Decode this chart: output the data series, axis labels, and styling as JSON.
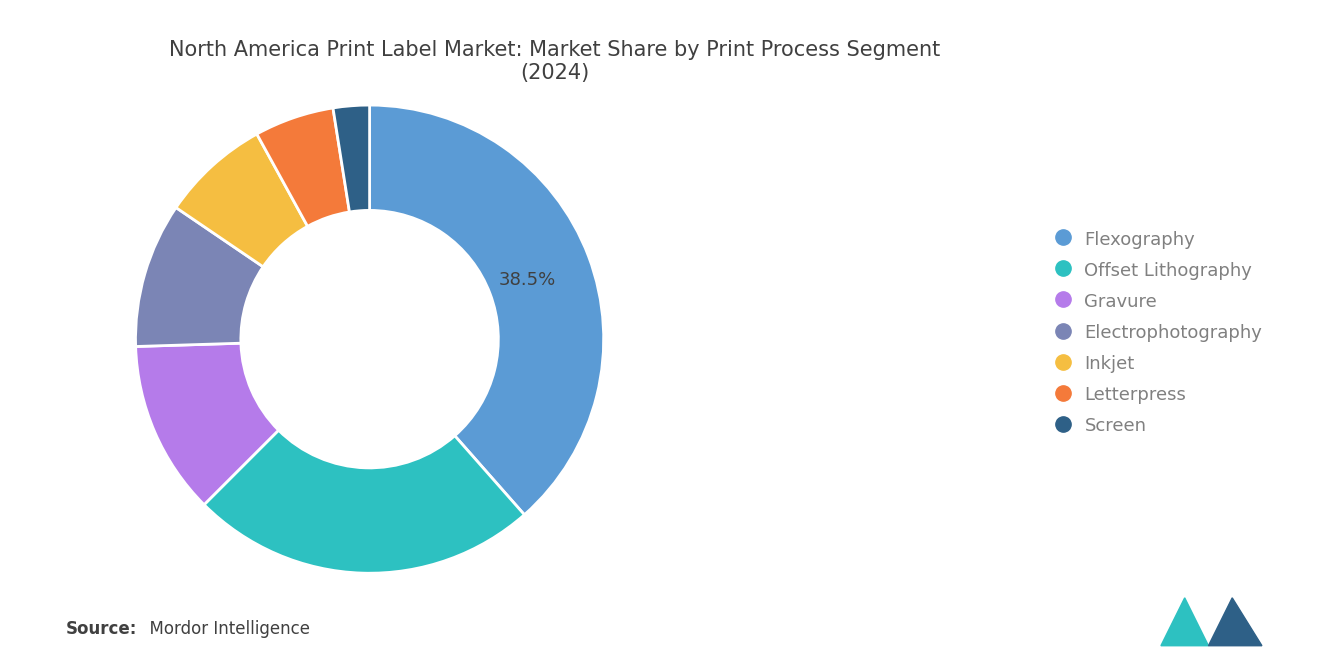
{
  "title": "North America Print Label Market: Market Share by Print Process Segment\n(2024)",
  "segments": [
    {
      "label": "Flexography",
      "value": 38.5,
      "color": "#5B9BD5"
    },
    {
      "label": "Offset Lithography",
      "value": 24.0,
      "color": "#2DC1C1"
    },
    {
      "label": "Gravure",
      "value": 12.0,
      "color": "#B57BEA"
    },
    {
      "label": "Electrophotography",
      "value": 10.0,
      "color": "#7B85B5"
    },
    {
      "label": "Inkjet",
      "value": 7.5,
      "color": "#F5BE41"
    },
    {
      "label": "Letterpress",
      "value": 5.5,
      "color": "#F47A3A"
    },
    {
      "label": "Screen",
      "value": 2.5,
      "color": "#2E6087"
    }
  ],
  "label_text": "38.5%",
  "label_segment_index": 0,
  "source_bold": "Source:",
  "source_normal": "  Mordor Intelligence",
  "background_color": "#FFFFFF",
  "title_color": "#404040",
  "legend_text_color": "#808080",
  "source_text_color": "#404040",
  "title_fontsize": 15,
  "legend_fontsize": 13,
  "source_fontsize": 12,
  "label_fontsize": 13
}
